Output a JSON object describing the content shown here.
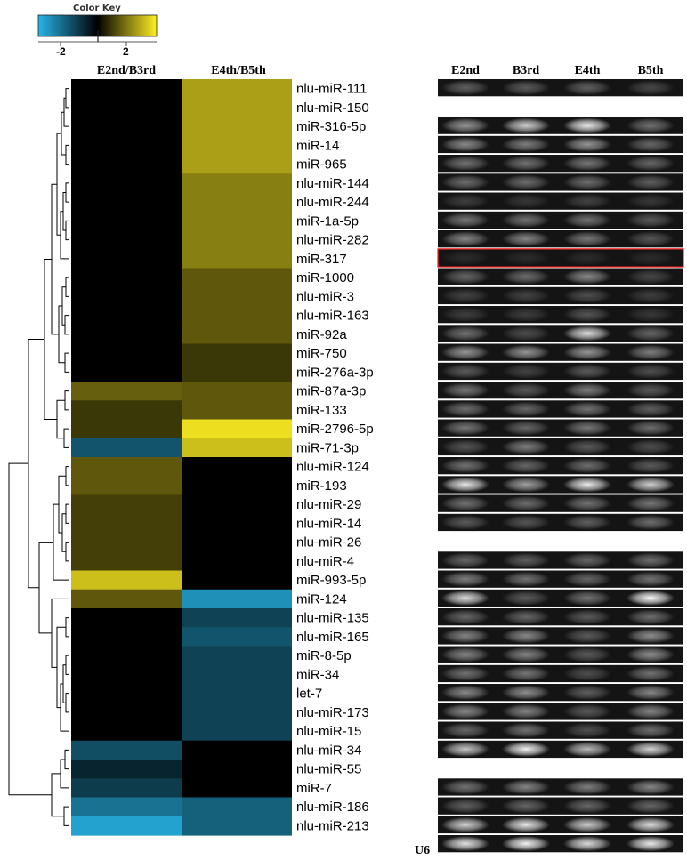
{
  "color_key": {
    "title": "Color Key",
    "ticks": [
      -2,
      2
    ],
    "range": [
      -3,
      3
    ]
  },
  "heatmap": {
    "columns": [
      "E2nd/B3rd",
      "E4th/B5th"
    ],
    "rows": [
      {
        "label": "nlu-miR-111",
        "v": [
          0,
          2.0
        ]
      },
      {
        "label": "nlu-miR-150",
        "v": [
          0,
          2.0
        ]
      },
      {
        "label": "miR-316-5p",
        "v": [
          0,
          2.0
        ]
      },
      {
        "label": "miR-14",
        "v": [
          0,
          2.0
        ]
      },
      {
        "label": "miR-965",
        "v": [
          0,
          2.0
        ]
      },
      {
        "label": "nlu-miR-144",
        "v": [
          0,
          1.6
        ]
      },
      {
        "label": "nlu-miR-244",
        "v": [
          0,
          1.6
        ]
      },
      {
        "label": "miR-1a-5p",
        "v": [
          0,
          1.6
        ]
      },
      {
        "label": "nlu-miR-282",
        "v": [
          0,
          1.6
        ]
      },
      {
        "label": "miR-317",
        "v": [
          0,
          1.6
        ]
      },
      {
        "label": "miR-1000",
        "v": [
          0,
          1.1
        ]
      },
      {
        "label": "nlu-miR-3",
        "v": [
          0,
          1.1
        ]
      },
      {
        "label": "nlu-miR-163",
        "v": [
          0,
          1.1
        ]
      },
      {
        "label": "miR-92a",
        "v": [
          0,
          1.1
        ]
      },
      {
        "label": "miR-750",
        "v": [
          0,
          0.7
        ]
      },
      {
        "label": "miR-276a-3p",
        "v": [
          0,
          0.7
        ]
      },
      {
        "label": "miR-87a-3p",
        "v": [
          1.2,
          1.1
        ]
      },
      {
        "label": "miR-133",
        "v": [
          0.7,
          1.1
        ]
      },
      {
        "label": "miR-2796-5p",
        "v": [
          0.7,
          2.8
        ]
      },
      {
        "label": "miR-71-3p",
        "v": [
          -1.4,
          2.4
        ]
      },
      {
        "label": "nlu-miR-124",
        "v": [
          1.1,
          0
        ]
      },
      {
        "label": "miR-193",
        "v": [
          1.1,
          0
        ]
      },
      {
        "label": "nlu-miR-29",
        "v": [
          0.8,
          0
        ]
      },
      {
        "label": "nlu-miR-14",
        "v": [
          0.8,
          0
        ]
      },
      {
        "label": "nlu-miR-26",
        "v": [
          0.8,
          0
        ]
      },
      {
        "label": "nlu-miR-4",
        "v": [
          0.8,
          0
        ]
      },
      {
        "label": "miR-993-5p",
        "v": [
          2.4,
          0
        ]
      },
      {
        "label": "miR-124",
        "v": [
          1.1,
          -2.4
        ]
      },
      {
        "label": "nlu-miR-135",
        "v": [
          0,
          -1.1
        ]
      },
      {
        "label": "nlu-miR-165",
        "v": [
          0,
          -1.4
        ]
      },
      {
        "label": "miR-8-5p",
        "v": [
          0,
          -1.1
        ]
      },
      {
        "label": "miR-34",
        "v": [
          0,
          -1.1
        ]
      },
      {
        "label": "let-7",
        "v": [
          0,
          -1.1
        ]
      },
      {
        "label": "nlu-miR-173",
        "v": [
          0,
          -1.1
        ]
      },
      {
        "label": "nlu-miR-15",
        "v": [
          0,
          -1.1
        ]
      },
      {
        "label": "nlu-miR-34",
        "v": [
          -1.3,
          0
        ]
      },
      {
        "label": "nlu-miR-55",
        "v": [
          -0.6,
          0
        ]
      },
      {
        "label": "miR-7",
        "v": [
          -1.0,
          0
        ]
      },
      {
        "label": "nlu-miR-186",
        "v": [
          -1.9,
          -1.6
        ]
      },
      {
        "label": "nlu-miR-213",
        "v": [
          -2.7,
          -1.6
        ]
      }
    ]
  },
  "gel": {
    "columns": [
      "E2nd",
      "B3rd",
      "E4th",
      "B5th"
    ],
    "control_label": "U6",
    "highlight_row": "miR-317",
    "bands": [
      [
        0.32,
        0.3,
        0.32,
        0.22
      ],
      [
        0,
        0,
        0,
        0
      ],
      [
        0.55,
        0.8,
        0.92,
        0.4
      ],
      [
        0.5,
        0.45,
        0.55,
        0.35
      ],
      [
        0.4,
        0.4,
        0.42,
        0.35
      ],
      [
        0.38,
        0.38,
        0.38,
        0.32
      ],
      [
        0.18,
        0.15,
        0.2,
        0.15
      ],
      [
        0.42,
        0.4,
        0.4,
        0.3
      ],
      [
        0.48,
        0.48,
        0.42,
        0.28
      ],
      [
        0.1,
        0.1,
        0.1,
        0.1
      ],
      [
        0.35,
        0.38,
        0.5,
        0.22
      ],
      [
        0.2,
        0.2,
        0.25,
        0.18
      ],
      [
        0.18,
        0.18,
        0.28,
        0.15
      ],
      [
        0.4,
        0.25,
        0.85,
        0.35
      ],
      [
        0.55,
        0.55,
        0.55,
        0.45
      ],
      [
        0.3,
        0.2,
        0.3,
        0.25
      ],
      [
        0.42,
        0.3,
        0.45,
        0.3
      ],
      [
        0.38,
        0.35,
        0.4,
        0.32
      ],
      [
        0.42,
        0.35,
        0.42,
        0.38
      ],
      [
        0.28,
        0.45,
        0.3,
        0.25
      ],
      [
        0.4,
        0.35,
        0.38,
        0.3
      ],
      [
        0.9,
        0.6,
        0.92,
        0.8
      ],
      [
        0.4,
        0.38,
        0.4,
        0.42
      ],
      [
        0.3,
        0.28,
        0.32,
        0.38
      ],
      [
        0,
        0,
        0,
        0
      ],
      [
        0.35,
        0.32,
        0.35,
        0.38
      ],
      [
        0.45,
        0.4,
        0.35,
        0.4
      ],
      [
        0.85,
        0.3,
        0.4,
        0.98
      ],
      [
        0.35,
        0.35,
        0.3,
        0.38
      ],
      [
        0.48,
        0.5,
        0.3,
        0.52
      ],
      [
        0.48,
        0.48,
        0.3,
        0.52
      ],
      [
        0.4,
        0.42,
        0.25,
        0.4
      ],
      [
        0.5,
        0.52,
        0.32,
        0.48
      ],
      [
        0.5,
        0.48,
        0.3,
        0.48
      ],
      [
        0.35,
        0.4,
        0.25,
        0.38
      ],
      [
        0.75,
        0.95,
        0.7,
        0.82
      ],
      [
        0,
        0,
        0,
        0
      ],
      [
        0.4,
        0.48,
        0.45,
        0.48
      ],
      [
        0.32,
        0.35,
        0.35,
        0.35
      ],
      [
        0.8,
        0.9,
        0.78,
        0.85
      ],
      [
        0.88,
        0.95,
        0.85,
        0.92
      ]
    ]
  }
}
